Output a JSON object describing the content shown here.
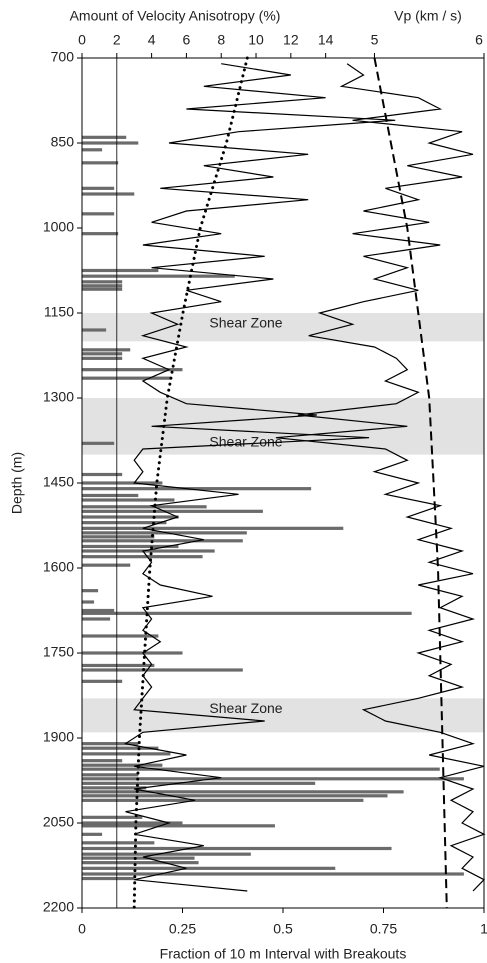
{
  "chart_data": {
    "type": "well-log",
    "x_label": "Fraction of 10 m  Interval with Breakouts",
    "x2_label": "Amount of Velocity Anisotropy (%)",
    "x3_label": "Vp (km / s)",
    "y_label": "Depth (m)",
    "xlim": [
      0,
      1
    ],
    "xticks": [
      0,
      0.25,
      0.5,
      0.75,
      1
    ],
    "x2lim": [
      0,
      23.1
    ],
    "x2ticks": [
      0,
      2,
      4,
      6,
      8,
      10,
      12,
      14
    ],
    "x3lim": [
      2.33,
      6
    ],
    "x3ticks": [
      5,
      6
    ],
    "ylim": [
      700,
      2200
    ],
    "y_inverted": true,
    "yticks": [
      700,
      850,
      1000,
      1150,
      1300,
      1450,
      1600,
      1750,
      1900,
      2050,
      2200
    ],
    "reference_x2": 2,
    "bands": [
      {
        "from": 1150,
        "to": 1200,
        "label": "Shear Zone",
        "label_position": "top"
      },
      {
        "from": 1300,
        "to": 1400,
        "label": "Shear Zone",
        "label_position": "bottom"
      },
      {
        "from": 1830,
        "to": 1890,
        "label": "Shear Zone",
        "label_position": "top"
      }
    ],
    "band_color": "#e2e2e2",
    "breakouts": {
      "color": "#6b6b6b",
      "depth": [
        840,
        850,
        862,
        885,
        930,
        940,
        975,
        1010,
        1075,
        1085,
        1095,
        1102,
        1108,
        1180,
        1215,
        1222,
        1230,
        1250,
        1265,
        1380,
        1435,
        1450,
        1460,
        1472,
        1480,
        1492,
        1500,
        1510,
        1520,
        1530,
        1538,
        1545,
        1552,
        1562,
        1570,
        1580,
        1595,
        1640,
        1660,
        1675,
        1680,
        1690,
        1720,
        1750,
        1772,
        1780,
        1800,
        1910,
        1918,
        1928,
        1940,
        1948,
        1955,
        1965,
        1972,
        1980,
        1988,
        1995,
        2002,
        2010,
        2040,
        2050,
        2055,
        2070,
        2085,
        2095,
        2105,
        2112,
        2120,
        2130,
        2140,
        2148
      ],
      "values": [
        0.11,
        0.14,
        0.05,
        0.09,
        0.08,
        0.13,
        0.08,
        0.09,
        0.19,
        0.38,
        0.1,
        0.1,
        0.1,
        0.06,
        0.12,
        0.1,
        0.1,
        0.25,
        0.22,
        0.08,
        0.1,
        0.2,
        0.57,
        0.14,
        0.23,
        0.31,
        0.45,
        0.24,
        0.21,
        0.65,
        0.41,
        0.18,
        0.4,
        0.24,
        0.33,
        0.3,
        0.12,
        0.04,
        0.03,
        0.08,
        0.82,
        0.07,
        0.19,
        0.25,
        0.18,
        0.4,
        0.1,
        0.14,
        0.19,
        0.22,
        0.1,
        0.2,
        0.89,
        0.14,
        0.95,
        0.58,
        0.16,
        0.8,
        0.76,
        0.7,
        0.15,
        0.25,
        0.48,
        0.05,
        0.18,
        0.77,
        0.42,
        0.28,
        0.29,
        0.63,
        0.95,
        0.13
      ]
    },
    "anisotropy": {
      "color": "#000000",
      "depth": [
        710,
        730,
        750,
        770,
        790,
        810,
        830,
        850,
        870,
        890,
        910,
        930,
        950,
        970,
        990,
        1010,
        1030,
        1050,
        1070,
        1090,
        1110,
        1130,
        1150,
        1170,
        1190,
        1210,
        1230,
        1250,
        1270,
        1290,
        1310,
        1330,
        1350,
        1370,
        1390,
        1410,
        1430,
        1450,
        1470,
        1490,
        1510,
        1530,
        1550,
        1570,
        1590,
        1610,
        1630,
        1650,
        1670,
        1690,
        1710,
        1730,
        1750,
        1770,
        1790,
        1810,
        1830,
        1850,
        1870,
        1890,
        1910,
        1930,
        1950,
        1970,
        1990,
        2010,
        2030,
        2050,
        2070,
        2090,
        2110,
        2130,
        2150,
        2170
      ],
      "values": [
        8,
        12,
        7,
        14,
        6,
        18,
        9,
        5,
        13,
        7,
        11,
        4.5,
        13,
        6,
        4,
        8,
        3.5,
        10.5,
        4,
        11,
        6,
        8,
        4,
        5.5,
        3.5,
        6,
        3.5,
        5,
        3.5,
        4.5,
        6,
        13.5,
        4,
        16.5,
        3.5,
        3,
        3.5,
        3,
        9,
        4,
        5.5,
        3.5,
        7,
        3.5,
        4,
        3.5,
        4.5,
        7.5,
        3.5,
        4,
        3.5,
        4.5,
        3.5,
        4,
        3.5,
        4,
        3.5,
        3,
        10.5,
        3.5,
        2.5,
        6,
        3,
        8,
        3,
        6.5,
        2.5,
        5,
        3,
        7,
        3.5,
        6,
        3,
        9.5
      ]
    },
    "vp": {
      "color": "#000000",
      "depth": [
        710,
        730,
        750,
        770,
        790,
        810,
        830,
        850,
        870,
        890,
        910,
        930,
        950,
        970,
        990,
        1010,
        1030,
        1050,
        1070,
        1090,
        1110,
        1130,
        1150,
        1170,
        1190,
        1210,
        1230,
        1250,
        1270,
        1290,
        1310,
        1330,
        1350,
        1370,
        1390,
        1410,
        1430,
        1450,
        1470,
        1490,
        1510,
        1530,
        1550,
        1570,
        1590,
        1610,
        1630,
        1650,
        1670,
        1690,
        1710,
        1730,
        1750,
        1770,
        1790,
        1810,
        1830,
        1850,
        1870,
        1890,
        1910,
        1930,
        1950,
        1970,
        1990,
        2010,
        2030,
        2050,
        2070,
        2090,
        2110,
        2130,
        2150,
        2170
      ],
      "values": [
        4.75,
        4.9,
        4.7,
        5.4,
        5.6,
        4.8,
        5.8,
        5.5,
        5.9,
        5.3,
        5.8,
        5.1,
        5.4,
        4.9,
        5.5,
        4.8,
        5.6,
        4.9,
        5.3,
        5.0,
        5.4,
        4.9,
        4.5,
        4.8,
        4.4,
        5.0,
        5.2,
        5.3,
        5.1,
        5.4,
        5.2,
        4.3,
        5.3,
        4.1,
        5.1,
        5.3,
        5.0,
        5.4,
        5.1,
        5.6,
        5.3,
        5.7,
        5.4,
        5.8,
        5.5,
        5.9,
        5.4,
        5.8,
        5.6,
        5.9,
        5.5,
        5.8,
        5.4,
        5.7,
        5.5,
        5.8,
        5.4,
        4.9,
        5.1,
        5.6,
        5.9,
        5.5,
        6.0,
        5.6,
        5.9,
        5.7,
        5.9,
        5.8,
        6.0,
        5.7,
        5.9,
        5.8,
        6.0,
        5.9
      ]
    },
    "anisotropy_trend": {
      "color": "#000000",
      "depth": [
        700,
        850,
        1000,
        1150,
        1300,
        1450,
        1600,
        1750,
        1900,
        2050,
        2200
      ],
      "values": [
        9.5,
        8.3,
        6.8,
        5.8,
        4.9,
        4.3,
        3.9,
        3.6,
        3.3,
        3.1,
        3.0
      ]
    },
    "vp_trend": {
      "color": "#000000",
      "depth": [
        700,
        1000,
        1300,
        1600,
        1900,
        2200
      ],
      "values": [
        5.0,
        5.3,
        5.5,
        5.58,
        5.62,
        5.66
      ]
    }
  }
}
